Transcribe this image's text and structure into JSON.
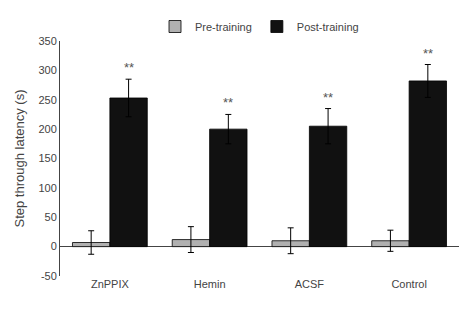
{
  "chart_data": {
    "type": "bar",
    "ylabel": "Step through latency (s)",
    "categories": [
      "ZnPPIX",
      "Hemin",
      "ACSF",
      "Control"
    ],
    "series": [
      {
        "name": "Pre-training",
        "color": "#b0b0b0",
        "values": [
          7,
          12,
          10,
          10
        ],
        "errors": [
          20,
          22,
          22,
          18
        ]
      },
      {
        "name": "Post-training",
        "color": "#111111",
        "values": [
          253,
          200,
          205,
          282
        ],
        "errors": [
          32,
          25,
          30,
          28
        ],
        "annotations": [
          "**",
          "**",
          "**",
          "**"
        ]
      }
    ],
    "ylim": [
      -50,
      350
    ],
    "yticks": [
      -50,
      0,
      50,
      100,
      150,
      200,
      250,
      300,
      350
    ],
    "grid": false,
    "legend": "top"
  }
}
